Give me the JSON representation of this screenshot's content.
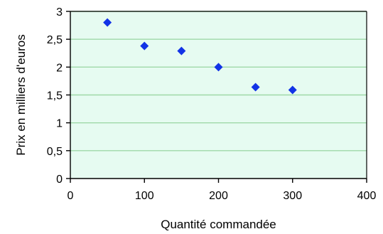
{
  "chart_data": {
    "type": "scatter",
    "title": "",
    "xlabel": "Quantité commandée",
    "ylabel": "Prix en milliers d'euros",
    "xlim": [
      0,
      400
    ],
    "ylim": [
      0,
      3
    ],
    "x_ticks": [
      0,
      100,
      200,
      300,
      400
    ],
    "y_ticks": [
      0,
      0.5,
      1,
      1.5,
      2,
      2.5,
      3
    ],
    "x_tick_labels": [
      "0",
      "100",
      "200",
      "300",
      "400"
    ],
    "y_tick_labels": [
      "0",
      "0,5",
      "1",
      "1,5",
      "2",
      "2,5",
      "3"
    ],
    "grid": "horizontal",
    "legend": "none",
    "colors": {
      "plot_background": "#e6fbf1",
      "gridline": "#9fd9a8",
      "marker": "#1233e6",
      "axis": "#000000"
    },
    "marker": "diamond-icon",
    "series": [
      {
        "x": [
          50,
          100,
          150,
          200,
          250,
          300
        ],
        "y": [
          2.8,
          2.38,
          2.29,
          2.0,
          1.64,
          1.59
        ]
      }
    ]
  }
}
